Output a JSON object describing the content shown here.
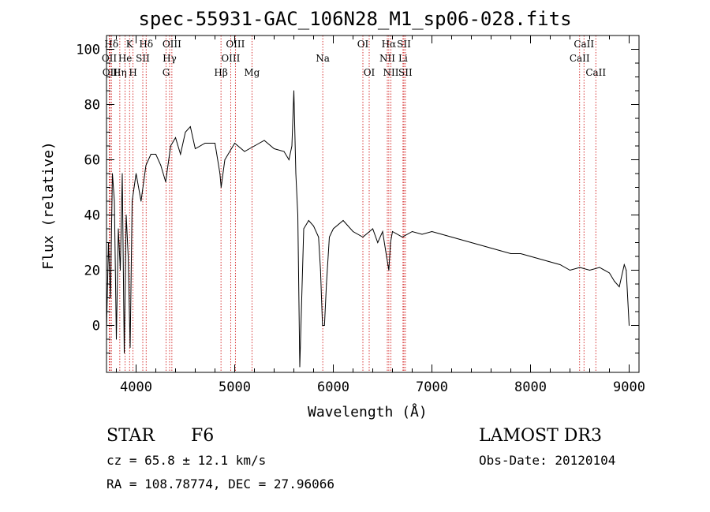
{
  "chart_data": {
    "type": "line",
    "title": "spec-55931-GAC_106N28_M1_sp06-028.fits",
    "xlabel": "Wavelength (Å)",
    "ylabel": "Flux (relative)",
    "xlim": [
      3700,
      9100
    ],
    "ylim": [
      -17,
      105
    ],
    "xticks": [
      4000,
      5000,
      6000,
      7000,
      8000,
      9000
    ],
    "yticks": [
      0,
      20,
      40,
      60,
      80,
      100
    ],
    "series": [
      {
        "name": "flux",
        "x": [
          3700,
          3720,
          3740,
          3760,
          3780,
          3800,
          3820,
          3840,
          3860,
          3880,
          3900,
          3920,
          3940,
          3960,
          3980,
          4000,
          4050,
          4100,
          4150,
          4200,
          4250,
          4300,
          4350,
          4400,
          4450,
          4500,
          4550,
          4600,
          4700,
          4800,
          4850,
          4862,
          4900,
          5000,
          5100,
          5200,
          5300,
          5400,
          5500,
          5550,
          5580,
          5600,
          5620,
          5640,
          5660,
          5680,
          5700,
          5750,
          5800,
          5850,
          5870,
          5890,
          5910,
          5930,
          5960,
          6000,
          6100,
          6200,
          6300,
          6400,
          6450,
          6500,
          6540,
          6563,
          6580,
          6600,
          6700,
          6800,
          6900,
          7000,
          7100,
          7200,
          7300,
          7400,
          7500,
          7600,
          7700,
          7800,
          7900,
          8000,
          8100,
          8200,
          8300,
          8400,
          8500,
          8600,
          8700,
          8800,
          8850,
          8900,
          8950,
          8970,
          9000
        ],
        "y": [
          -2,
          30,
          10,
          55,
          45,
          -5,
          35,
          20,
          55,
          -10,
          40,
          25,
          -8,
          45,
          50,
          55,
          45,
          58,
          62,
          62,
          58,
          52,
          65,
          68,
          62,
          70,
          72,
          64,
          66,
          66,
          55,
          50,
          60,
          66,
          63,
          65,
          67,
          64,
          63,
          60,
          65,
          85,
          55,
          40,
          -15,
          10,
          35,
          38,
          36,
          32,
          20,
          0,
          0,
          15,
          32,
          35,
          38,
          34,
          32,
          35,
          30,
          34,
          25,
          20,
          30,
          34,
          32,
          34,
          33,
          34,
          33,
          32,
          31,
          30,
          29,
          28,
          27,
          26,
          26,
          25,
          24,
          23,
          22,
          20,
          21,
          20,
          21,
          19,
          16,
          14,
          22,
          20,
          0
        ]
      }
    ],
    "lines": [
      {
        "label": "Hδ",
        "x": 3750,
        "row": 0
      },
      {
        "label": "OII",
        "x": 3728,
        "row": 1
      },
      {
        "label": "OII",
        "x": 3735,
        "row": 2
      },
      {
        "label": "K",
        "x": 3934,
        "row": 0
      },
      {
        "label": "He",
        "x": 3889,
        "row": 1
      },
      {
        "label": "Hη",
        "x": 3835,
        "row": 2
      },
      {
        "label": "H",
        "x": 3969,
        "row": 2
      },
      {
        "label": "Hδ",
        "x": 4102,
        "row": 0
      },
      {
        "label": "SII",
        "x": 4068,
        "row": 1
      },
      {
        "label": "OIII",
        "x": 4363,
        "row": 0
      },
      {
        "label": "Hγ",
        "x": 4340,
        "row": 1
      },
      {
        "label": "G",
        "x": 4304,
        "row": 2
      },
      {
        "label": "OIII",
        "x": 5007,
        "row": 0
      },
      {
        "label": "OIII",
        "x": 4959,
        "row": 1
      },
      {
        "label": "Hβ",
        "x": 4861,
        "row": 2
      },
      {
        "label": "Mg",
        "x": 5175,
        "row": 2
      },
      {
        "label": "Na",
        "x": 5893,
        "row": 1
      },
      {
        "label": "OI",
        "x": 6300,
        "row": 0
      },
      {
        "label": "OI",
        "x": 6364,
        "row": 2
      },
      {
        "label": "Hα",
        "x": 6563,
        "row": 0
      },
      {
        "label": "SII",
        "x": 6716,
        "row": 0
      },
      {
        "label": "NII",
        "x": 6548,
        "row": 1
      },
      {
        "label": "Li",
        "x": 6707,
        "row": 1
      },
      {
        "label": "NII",
        "x": 6584,
        "row": 2
      },
      {
        "label": "SII",
        "x": 6731,
        "row": 2
      },
      {
        "label": "CaII",
        "x": 8542,
        "row": 0
      },
      {
        "label": "CaII",
        "x": 8498,
        "row": 1
      },
      {
        "label": "CaII",
        "x": 8662,
        "row": 2
      }
    ]
  },
  "info": {
    "class": "STAR",
    "subclass": "F6",
    "survey": "LAMOST DR3",
    "cz": "cz = 65.8 ± 12.1 km/s",
    "obs_date": "Obs-Date: 20120104",
    "coords": "RA = 108.78774, DEC =  27.96066"
  }
}
